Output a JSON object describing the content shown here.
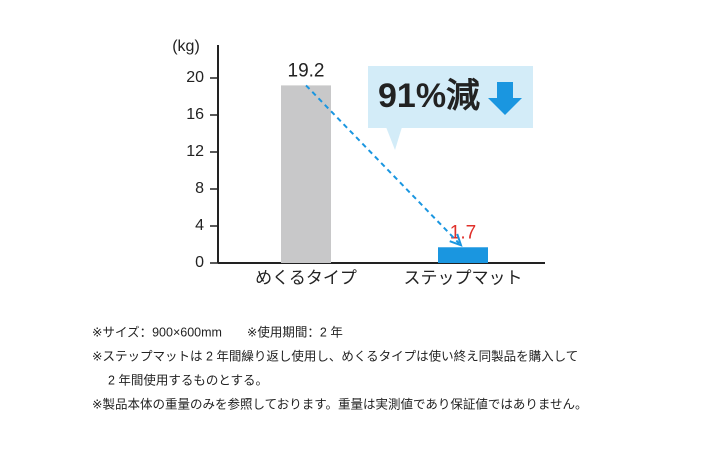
{
  "chart_data": {
    "type": "bar",
    "y_label": "(kg)",
    "categories": [
      "めくるタイプ",
      "ステップマット"
    ],
    "values": [
      19.2,
      1.7
    ],
    "colors": [
      "#c8c8c9",
      "#1a96e0"
    ],
    "value_label_colors": [
      "#222222",
      "#e0302a"
    ],
    "ylim": [
      0,
      24
    ],
    "yticks": [
      0,
      4,
      8,
      12,
      16,
      20
    ],
    "annotation": "91%減",
    "notes": [
      "※サイズ：900×600mm　　※使用期間：2 年",
      "※ステップマットは 2 年間繰り返し使用し、めくるタイプは使い終え同製品を購入して",
      "2 年間使用するものとする。",
      "※製品本体の重量のみを参照しております。重量は実測値であり保証値ではありません。"
    ]
  }
}
